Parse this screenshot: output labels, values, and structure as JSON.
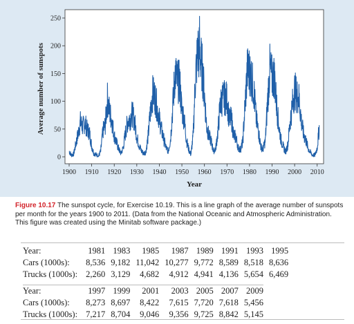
{
  "chart_data": {
    "type": "line",
    "title": "",
    "xlabel": "Year",
    "ylabel": "Average number of sunspots",
    "xlim": [
      1900,
      2011
    ],
    "ylim": [
      0,
      260
    ],
    "x_ticks": [
      1900,
      1910,
      1920,
      1930,
      1940,
      1950,
      1960,
      1970,
      1980,
      1990,
      2000,
      2010
    ],
    "y_ticks": [
      0,
      50,
      100,
      150,
      200,
      250
    ],
    "series_color": "#1f5fa8",
    "grid": false,
    "legend": "none",
    "x": [
      1900,
      1901,
      1902,
      1903,
      1904,
      1905,
      1906,
      1907,
      1908,
      1909,
      1910,
      1911,
      1912,
      1913,
      1914,
      1915,
      1916,
      1917,
      1918,
      1919,
      1920,
      1921,
      1922,
      1923,
      1924,
      1925,
      1926,
      1927,
      1928,
      1929,
      1930,
      1931,
      1932,
      1933,
      1934,
      1935,
      1936,
      1937,
      1938,
      1939,
      1940,
      1941,
      1942,
      1943,
      1944,
      1945,
      1946,
      1947,
      1948,
      1949,
      1950,
      1951,
      1952,
      1953,
      1954,
      1955,
      1956,
      1957,
      1958,
      1959,
      1960,
      1961,
      1962,
      1963,
      1964,
      1965,
      1966,
      1967,
      1968,
      1969,
      1970,
      1971,
      1972,
      1973,
      1974,
      1975,
      1976,
      1977,
      1978,
      1979,
      1980,
      1981,
      1982,
      1983,
      1984,
      1985,
      1986,
      1987,
      1988,
      1989,
      1990,
      1991,
      1992,
      1993,
      1994,
      1995,
      1996,
      1997,
      1998,
      1999,
      2000,
      2001,
      2002,
      2003,
      2004,
      2005,
      2006,
      2007,
      2008,
      2009,
      2010,
      2011
    ],
    "values": [
      10,
      3,
      5,
      24,
      42,
      63,
      54,
      62,
      49,
      44,
      19,
      6,
      4,
      1,
      10,
      47,
      57,
      104,
      80,
      64,
      38,
      26,
      14,
      6,
      17,
      44,
      64,
      69,
      78,
      65,
      36,
      21,
      11,
      6,
      9,
      36,
      80,
      114,
      110,
      89,
      68,
      48,
      31,
      16,
      10,
      33,
      93,
      152,
      136,
      135,
      84,
      69,
      31,
      14,
      4,
      38,
      142,
      190,
      185,
      159,
      112,
      54,
      38,
      28,
      10,
      15,
      47,
      94,
      106,
      106,
      105,
      67,
      69,
      38,
      35,
      16,
      13,
      27,
      93,
      155,
      155,
      140,
      116,
      67,
      46,
      18,
      14,
      29,
      100,
      158,
      142,
      146,
      94,
      55,
      30,
      18,
      9,
      22,
      64,
      93,
      120,
      111,
      104,
      64,
      40,
      30,
      15,
      8,
      3,
      3,
      16,
      56
    ],
    "peak_months": [
      [
        1957.8,
        253
      ]
    ]
  },
  "caption": {
    "label": "Figure 10.17",
    "text": " The sunspot cycle, for Exercise 10.19. This is a line graph of the average number of sunspots per month for the years 1900 to 2011. (Data from the National Oceanic and Atmospheric Administration. This figure was created using the Minitab software package.)"
  },
  "table": {
    "row_labels": {
      "year": "Year:",
      "cars": "Cars (1000s):",
      "trucks": "Trucks (1000s):"
    },
    "block1": {
      "years": [
        "1981",
        "1983",
        "1985",
        "1987",
        "1989",
        "1991",
        "1993",
        "1995"
      ],
      "cars": [
        "8,536",
        "9,182",
        "11,042",
        "10,277",
        "9,772",
        "8,589",
        "8,518",
        "8,636"
      ],
      "trucks": [
        "2,260",
        "3,129",
        "4,682",
        "4,912",
        "4,941",
        "4,136",
        "5,654",
        "6,469"
      ]
    },
    "block2": {
      "years": [
        "1997",
        "1999",
        "2001",
        "2003",
        "2005",
        "2007",
        "2009"
      ],
      "cars": [
        "8,273",
        "8,697",
        "8,422",
        "7,615",
        "7,720",
        "7,618",
        "5,456"
      ],
      "trucks": [
        "7,217",
        "8,704",
        "9,046",
        "9,356",
        "9,725",
        "8,842",
        "5,145"
      ]
    }
  }
}
